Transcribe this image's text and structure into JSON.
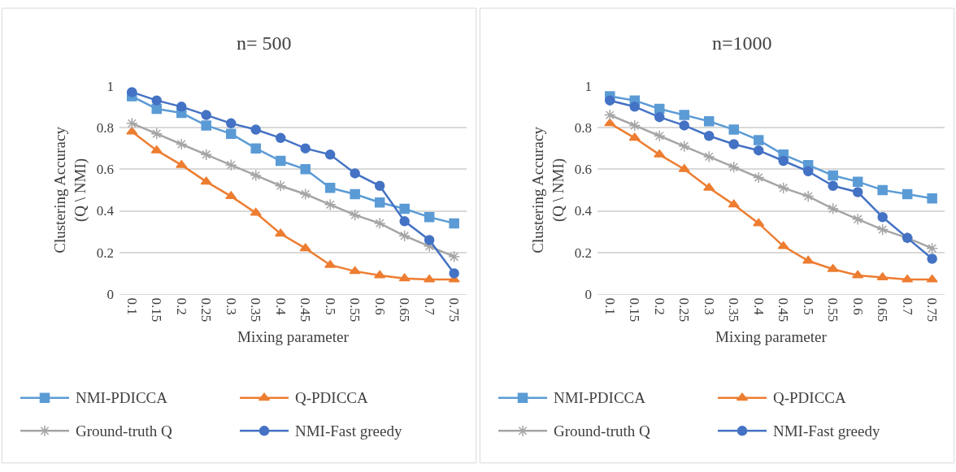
{
  "chart_data": [
    {
      "type": "line",
      "title": "n= 500",
      "xlabel": "Mixing parameter",
      "ylabel": "Clustering Accuracy\n(Q \\ NMI)",
      "categories": [
        "0.1",
        "0.15",
        "0.2",
        "0.25",
        "0.3",
        "0.35",
        "0.4",
        "0.45",
        "0.5",
        "0.55",
        "0.6",
        "0.65",
        "0.7",
        "0.75"
      ],
      "ylim": [
        0,
        1
      ],
      "yticks": [
        0,
        0.2,
        0.4,
        0.6,
        0.8,
        1
      ],
      "grid": "y",
      "legend": "bottom",
      "series": [
        {
          "name": "NMI-PDICCA",
          "color": "#5b9bd5",
          "marker": "square",
          "values": [
            0.95,
            0.89,
            0.87,
            0.81,
            0.77,
            0.7,
            0.64,
            0.6,
            0.51,
            0.48,
            0.44,
            0.41,
            0.37,
            0.34
          ]
        },
        {
          "name": "Q-PDICCA",
          "color": "#ed7d31",
          "marker": "triangle",
          "values": [
            0.78,
            0.69,
            0.62,
            0.54,
            0.47,
            0.39,
            0.29,
            0.22,
            0.14,
            0.11,
            0.09,
            0.075,
            0.07,
            0.07
          ]
        },
        {
          "name": "Ground-truth Q",
          "color": "#a5a5a5",
          "marker": "cross",
          "values": [
            0.82,
            0.77,
            0.72,
            0.67,
            0.62,
            0.57,
            0.52,
            0.48,
            0.43,
            0.38,
            0.34,
            0.28,
            0.23,
            0.18
          ]
        },
        {
          "name": "NMI-Fast greedy",
          "color": "#4472c4",
          "marker": "circle",
          "values": [
            0.97,
            0.93,
            0.9,
            0.86,
            0.82,
            0.79,
            0.75,
            0.7,
            0.67,
            0.58,
            0.52,
            0.35,
            0.26,
            0.1
          ]
        }
      ]
    },
    {
      "type": "line",
      "title": "n=1000",
      "xlabel": "Mixing parameter",
      "ylabel": "Clustering Accuracy\n(Q \\ NMI)",
      "categories": [
        "0.1",
        "0.15",
        "0.2",
        "0.25",
        "0.3",
        "0.35",
        "0.4",
        "0.45",
        "0.5",
        "0.55",
        "0.6",
        "0.65",
        "0.7",
        "0.75"
      ],
      "ylim": [
        0,
        1
      ],
      "yticks": [
        0,
        0.2,
        0.4,
        0.6,
        0.8,
        1
      ],
      "grid": "y",
      "legend": "bottom",
      "series": [
        {
          "name": "NMI-PDICCA",
          "color": "#5b9bd5",
          "marker": "square",
          "values": [
            0.95,
            0.93,
            0.89,
            0.86,
            0.83,
            0.79,
            0.74,
            0.67,
            0.62,
            0.57,
            0.54,
            0.5,
            0.48,
            0.46
          ]
        },
        {
          "name": "Q-PDICCA",
          "color": "#ed7d31",
          "marker": "triangle",
          "values": [
            0.82,
            0.75,
            0.67,
            0.6,
            0.51,
            0.43,
            0.34,
            0.23,
            0.16,
            0.12,
            0.09,
            0.08,
            0.07,
            0.07
          ]
        },
        {
          "name": "Ground-truth Q",
          "color": "#a5a5a5",
          "marker": "cross",
          "values": [
            0.86,
            0.81,
            0.76,
            0.71,
            0.66,
            0.61,
            0.56,
            0.51,
            0.47,
            0.41,
            0.36,
            0.31,
            0.27,
            0.22
          ]
        },
        {
          "name": "NMI-Fast greedy",
          "color": "#4472c4",
          "marker": "circle",
          "values": [
            0.93,
            0.9,
            0.85,
            0.81,
            0.76,
            0.72,
            0.69,
            0.64,
            0.59,
            0.52,
            0.49,
            0.37,
            0.27,
            0.17
          ]
        }
      ]
    }
  ]
}
